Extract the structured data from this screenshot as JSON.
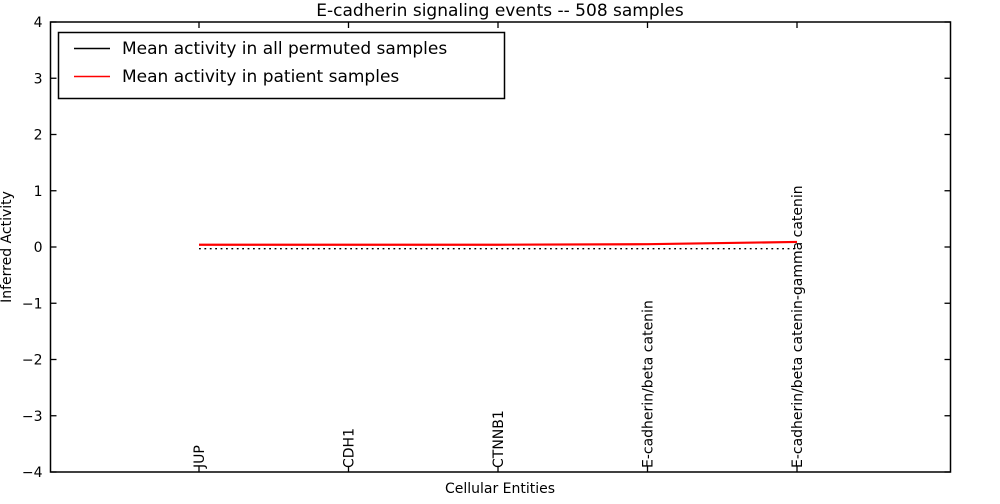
{
  "title": "E-cadherin signaling events -- 508 samples",
  "xlabel": "Cellular Entities",
  "ylabel": "Inferred Activity",
  "legend": {
    "position": "upper left",
    "entries": [
      {
        "label": "Mean activity in all permuted samples",
        "color": "#000000"
      },
      {
        "label": "Mean activity in patient samples",
        "color": "#ff0000"
      }
    ]
  },
  "chart_data": {
    "type": "line",
    "title": "E-cadherin signaling events -- 508 samples",
    "xlabel": "Cellular Entities",
    "ylabel": "Inferred Activity",
    "categories": [
      "JUP",
      "CDH1",
      "CTNNB1",
      "E-cadherin/beta catenin",
      "E-cadherin/beta catenin-gamma catenin"
    ],
    "series": [
      {
        "name": "Mean activity in all permuted samples",
        "color": "#000000",
        "line_style": "dotted",
        "values": [
          -0.03,
          -0.03,
          -0.03,
          -0.03,
          -0.03
        ]
      },
      {
        "name": "Mean activity in patient samples",
        "color": "#ff0000",
        "line_style": "solid",
        "values": [
          0.04,
          0.04,
          0.04,
          0.05,
          0.09
        ]
      }
    ],
    "ylim": [
      -4,
      4
    ],
    "yticks": [
      4,
      3,
      2,
      1,
      0,
      -1,
      -2,
      -3,
      -4
    ],
    "ytick_labels": [
      "4",
      "3",
      "2",
      "1",
      "0",
      "−1",
      "−2",
      "−3",
      "−4"
    ],
    "grid": false,
    "legend_position": "upper left",
    "x_tick_rotation": 90
  }
}
